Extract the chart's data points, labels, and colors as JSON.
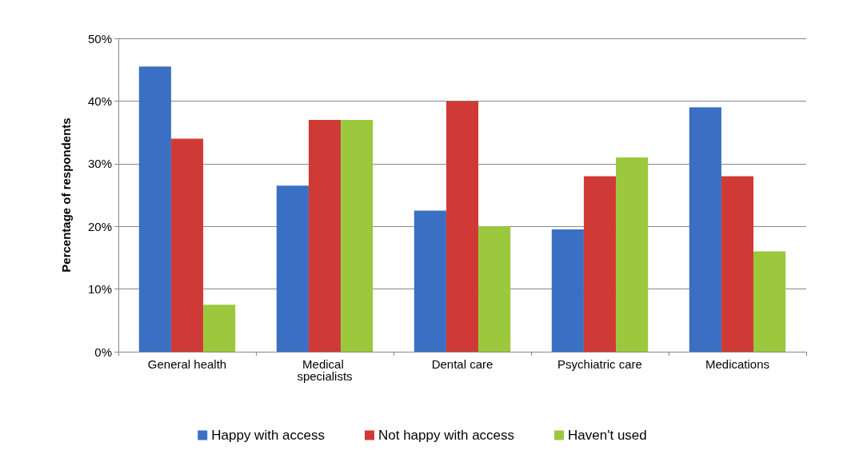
{
  "chart_data": {
    "type": "bar",
    "ylabel": "Percentage of respondents",
    "categories": [
      "General health",
      "Medical specialists",
      "Dental care",
      "Psychiatric care",
      "Medications"
    ],
    "series": [
      {
        "name": "Happy with access",
        "color": "#3a6fc4",
        "values": [
          45.5,
          26.5,
          22.5,
          19.5,
          39
        ]
      },
      {
        "name": "Not happy with access",
        "color": "#d03a36",
        "values": [
          34,
          37,
          40,
          28,
          28
        ]
      },
      {
        "name": "Haven't used",
        "color": "#9bc83c",
        "values": [
          7.5,
          37,
          20,
          31,
          16
        ]
      }
    ],
    "ylim": [
      0,
      50
    ],
    "yticks": [
      {
        "value": 0,
        "label": "0%"
      },
      {
        "value": 10,
        "label": "10%"
      },
      {
        "value": 20,
        "label": "20%"
      },
      {
        "value": 30,
        "label": "30%"
      },
      {
        "value": 40,
        "label": "40%"
      },
      {
        "value": 50,
        "label": "50%"
      }
    ],
    "grid": "y",
    "legend": "bottom"
  }
}
